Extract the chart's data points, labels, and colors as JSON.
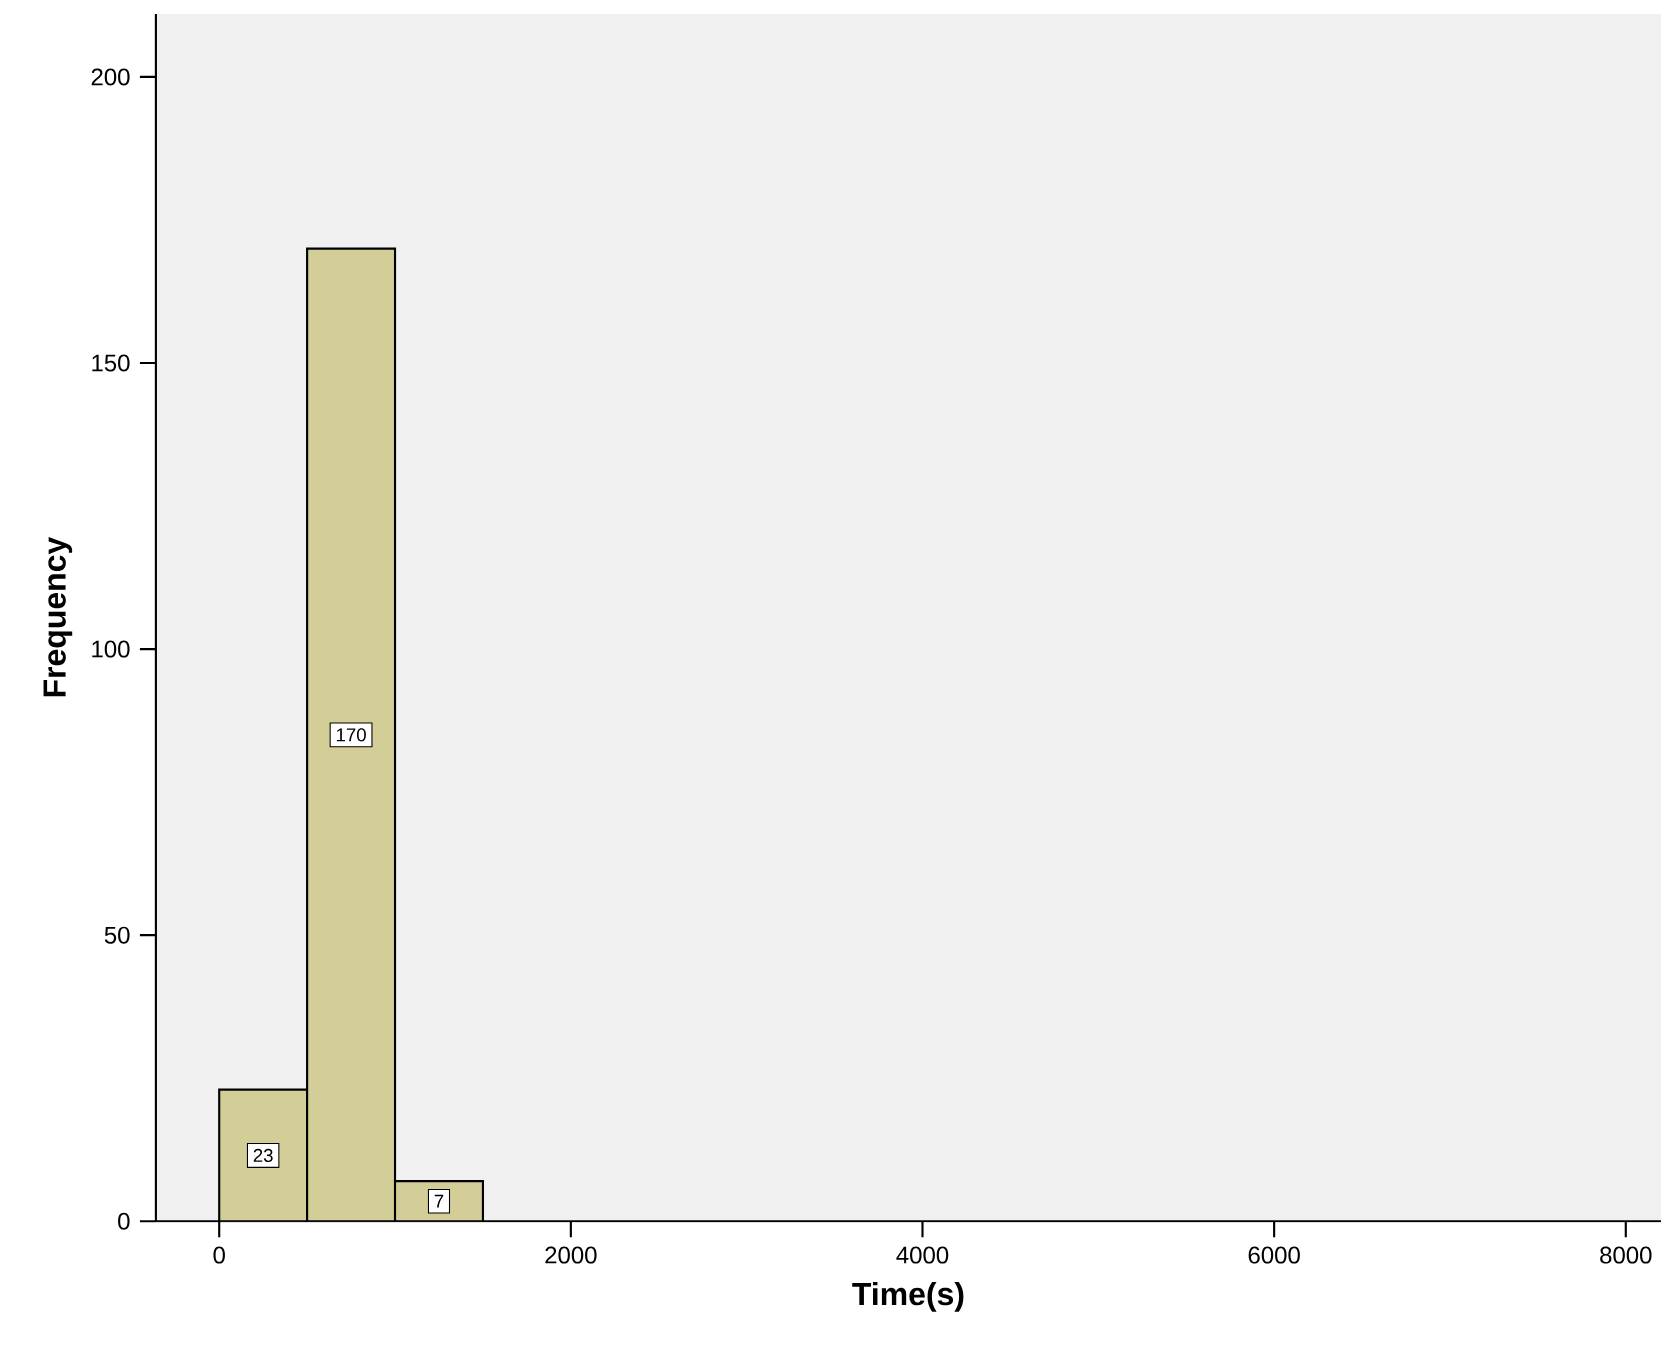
{
  "chart_data": {
    "type": "histogram",
    "xlabel": "Time(s)",
    "ylabel": "Frequency",
    "bins": [
      0,
      500,
      1000,
      1500
    ],
    "values": [
      23,
      170,
      7
    ],
    "color": "#d3ce97",
    "data_labels": true,
    "xlim": [
      -360,
      8200
    ],
    "ylim": [
      0,
      211
    ],
    "xticks": [
      0,
      2000,
      4000,
      6000,
      8000
    ],
    "yticks": [
      0,
      50,
      100,
      150,
      200
    ],
    "grid": false
  }
}
